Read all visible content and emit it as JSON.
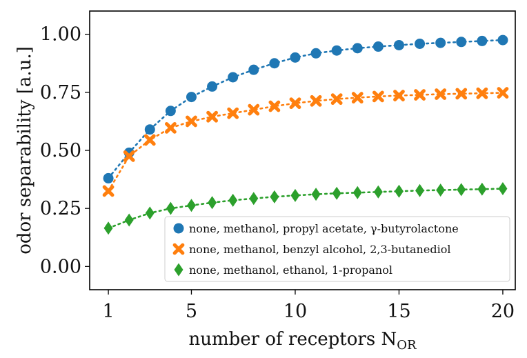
{
  "chart_data": {
    "type": "scatter",
    "xlabel": "number of receptors N",
    "xlabel_sub": "OR",
    "ylabel": "odor separability [a.u.]",
    "xlim": [
      0.1,
      20.6
    ],
    "ylim": [
      -0.1,
      1.1
    ],
    "xticks": [
      1,
      5,
      10,
      15,
      20
    ],
    "xtick_labels": [
      "1",
      "5",
      "10",
      "15",
      "20"
    ],
    "yticks": [
      0.0,
      0.25,
      0.5,
      0.75,
      1.0
    ],
    "ytick_labels": [
      "0.00",
      "0.25",
      "0.50",
      "0.75",
      "1.00"
    ],
    "grid": false,
    "legend_position": "lower-right",
    "x": [
      1,
      2,
      3,
      4,
      5,
      6,
      7,
      8,
      9,
      10,
      11,
      12,
      13,
      14,
      15,
      16,
      17,
      18,
      19,
      20
    ],
    "series": [
      {
        "name": "none, methanol, propyl acetate, γ-butyrolactone",
        "color": "#1f77b4",
        "marker": "circle",
        "values": [
          0.38,
          0.49,
          0.59,
          0.67,
          0.73,
          0.775,
          0.815,
          0.847,
          0.875,
          0.9,
          0.918,
          0.93,
          0.94,
          0.947,
          0.953,
          0.959,
          0.963,
          0.967,
          0.971,
          0.975
        ]
      },
      {
        "name": "none, methanol, benzyl alcohol, 2,3-butanediol",
        "color": "#ff7f0e",
        "marker": "x",
        "values": [
          0.325,
          0.475,
          0.545,
          0.597,
          0.625,
          0.645,
          0.66,
          0.675,
          0.69,
          0.703,
          0.713,
          0.721,
          0.727,
          0.732,
          0.736,
          0.739,
          0.742,
          0.744,
          0.746,
          0.748
        ]
      },
      {
        "name": "none, methanol, ethanol, 1-propanol",
        "color": "#2ca02c",
        "marker": "diamond",
        "values": [
          0.165,
          0.2,
          0.23,
          0.25,
          0.263,
          0.275,
          0.285,
          0.293,
          0.3,
          0.306,
          0.311,
          0.315,
          0.318,
          0.321,
          0.324,
          0.327,
          0.329,
          0.331,
          0.333,
          0.335
        ]
      }
    ]
  }
}
